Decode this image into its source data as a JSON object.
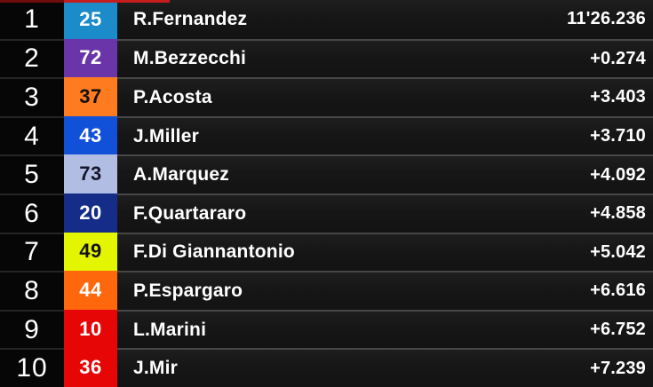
{
  "board": {
    "type": "motogp-timing-leaderboard",
    "leader_time_label": "11'26.236"
  },
  "accents": {
    "top_strip_left": "#6f0d0d",
    "top_strip_right": "#c51d1d",
    "separator_main": "#474747",
    "separator_pos": "#252525",
    "row_bg": "#161616",
    "pos_col_bg": "#060606"
  },
  "standings": {
    "rows": [
      {
        "position": "1",
        "number": "25",
        "rider": "R.Fernandez",
        "time": "11'26.236",
        "badge_bg": "#1b8cc9",
        "badge_fg": "#ffffff"
      },
      {
        "position": "2",
        "number": "72",
        "rider": "M.Bezzecchi",
        "time": "+0.274",
        "badge_bg": "#6a35a8",
        "badge_fg": "#ffffff"
      },
      {
        "position": "3",
        "number": "37",
        "rider": "P.Acosta",
        "time": "+3.403",
        "badge_bg": "#ff7b20",
        "badge_fg": "#121212"
      },
      {
        "position": "4",
        "number": "43",
        "rider": "J.Miller",
        "time": "+3.710",
        "badge_bg": "#1150d8",
        "badge_fg": "#ffffff"
      },
      {
        "position": "5",
        "number": "73",
        "rider": "A.Marquez",
        "time": "+4.092",
        "badge_bg": "#b2bde4",
        "badge_fg": "#16162a"
      },
      {
        "position": "6",
        "number": "20",
        "rider": "F.Quartararo",
        "time": "+4.858",
        "badge_bg": "#152d89",
        "badge_fg": "#ffffff"
      },
      {
        "position": "7",
        "number": "49",
        "rider": "F.Di Giannantonio",
        "time": "+5.042",
        "badge_bg": "#e3f600",
        "badge_fg": "#121212"
      },
      {
        "position": "8",
        "number": "44",
        "rider": "P.Espargaro",
        "time": "+6.616",
        "badge_bg": "#ff670d",
        "badge_fg": "#ffffff"
      },
      {
        "position": "9",
        "number": "10",
        "rider": "L.Marini",
        "time": "+6.752",
        "badge_bg": "#e60606",
        "badge_fg": "#ffffff"
      },
      {
        "position": "10",
        "number": "36",
        "rider": "J.Mir",
        "time": "+7.239",
        "badge_bg": "#e60606",
        "badge_fg": "#ffffff"
      }
    ]
  }
}
